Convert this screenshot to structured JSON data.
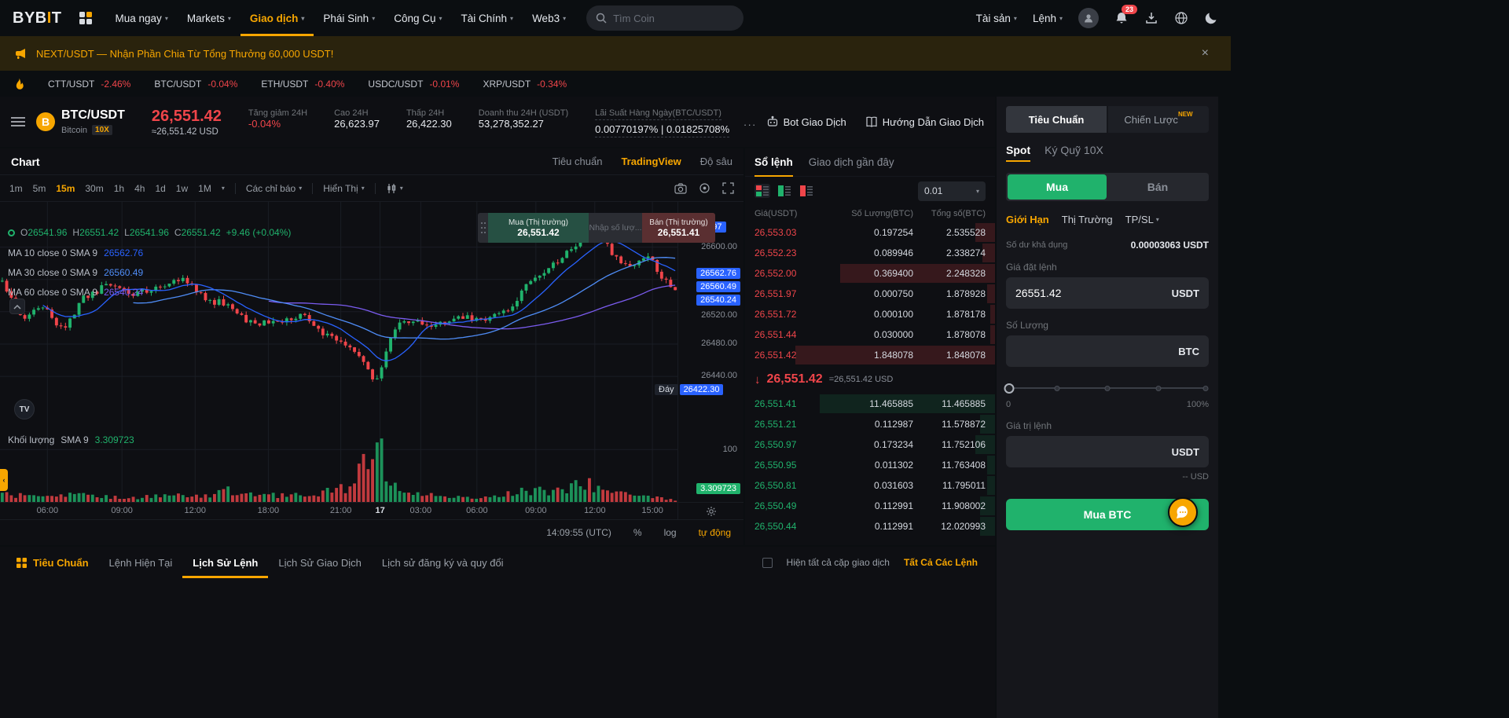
{
  "nav": {
    "logo_pre": "BYB",
    "logo_accent": "I",
    "logo_post": "T",
    "menu": [
      {
        "label": "Mua ngay",
        "active": false
      },
      {
        "label": "Markets",
        "active": false
      },
      {
        "label": "Giao dịch",
        "active": true
      },
      {
        "label": "Phái Sinh",
        "active": false
      },
      {
        "label": "Công Cụ",
        "active": false
      },
      {
        "label": "Tài Chính",
        "active": false
      },
      {
        "label": "Web3",
        "active": false
      }
    ],
    "search_placeholder": "Tìm Coin",
    "assets_label": "Tài sản",
    "orders_label": "Lệnh",
    "notification_count": "23"
  },
  "banner": {
    "text": "NEXT/USDT — Nhận Phần Chia Từ Tổng Thưởng 60,000 USDT!",
    "close": "×"
  },
  "ticker": [
    {
      "pair": "CTT/USDT",
      "change": "-2.46%"
    },
    {
      "pair": "BTC/USDT",
      "change": "-0.04%"
    },
    {
      "pair": "ETH/USDT",
      "change": "-0.40%"
    },
    {
      "pair": "USDC/USDT",
      "change": "-0.01%"
    },
    {
      "pair": "XRP/USDT",
      "change": "-0.34%"
    }
  ],
  "instrument": {
    "pair": "BTC/USDT",
    "name": "Bitcoin",
    "leverage": "10X",
    "last_price": "26,551.42",
    "usd_price": "≈26,551.42 USD",
    "stats": [
      {
        "label": "Tăng giảm 24H",
        "value": "-0.04%",
        "negative": true
      },
      {
        "label": "Cao 24H",
        "value": "26,623.97"
      },
      {
        "label": "Thấp 24H",
        "value": "26,422.30"
      },
      {
        "label": "Doanh thu 24H (USDT)",
        "value": "53,278,352.27"
      },
      {
        "label": "Lãi Suất Hàng Ngày(BTC/USDT)",
        "value": "0.00770197% | 0.01825708%",
        "dashed": true
      }
    ],
    "more": "...",
    "bot_label": "Bot Giao Dịch",
    "guide_label": "Hướng Dẫn Giao Dịch"
  },
  "chart": {
    "title": "Chart",
    "view_tabs": [
      {
        "label": "Tiêu chuẩn",
        "active": false
      },
      {
        "label": "TradingView",
        "active": true
      },
      {
        "label": "Độ sâu",
        "active": false
      }
    ],
    "timeframes": [
      {
        "label": "1m"
      },
      {
        "label": "5m"
      },
      {
        "label": "15m",
        "active": true
      },
      {
        "label": "30m"
      },
      {
        "label": "1h"
      },
      {
        "label": "4h"
      },
      {
        "label": "1d"
      },
      {
        "label": "1w"
      },
      {
        "label": "1M"
      }
    ],
    "indicators_label": "Các chỉ báo",
    "display_label": "Hiển Thị",
    "ohlc": {
      "o_label": "O",
      "open": "26541.96",
      "h_label": "H",
      "high": "26551.42",
      "l_label": "L",
      "low": "26541.96",
      "c_label": "C",
      "close": "26551.42",
      "change": "+9.46 (+0.04%)"
    },
    "ma_lines": [
      {
        "label": "MA 10 close 0 SMA 9",
        "value": "26562.76"
      },
      {
        "label": "MA 30 close 0 SMA 9",
        "value": "26560.49"
      },
      {
        "label": "MA 60 close 0 SMA 9",
        "value": "26540.24"
      }
    ],
    "trade_widget": {
      "buy_label": "Mua (Thị trường)",
      "buy_price": "26,551.42",
      "qty_placeholder": "Nhập số lượ...",
      "sell_label": "Bán (Thị trường)",
      "sell_price": "26,551.41"
    },
    "axis": {
      "high_tag": "Đỉnh",
      "high_value": "26623.97",
      "grid1": "26600.00",
      "grid2": "26520.00",
      "grid3": "26480.00",
      "grid4": "26440.00",
      "ma1": "26562.76",
      "ma2": "26560.49",
      "ma3": "26540.24",
      "low_tag": "Đáy",
      "low_value": "26422.30",
      "vol_grid": "100",
      "vol_value": "3.309723"
    },
    "volume_label": "Khối lượng",
    "volume_ma": "SMA 9",
    "volume_value": "3.309723",
    "time_ticks": [
      {
        "label": "06:00",
        "x": 7.0
      },
      {
        "label": "09:00",
        "x": 18.0
      },
      {
        "label": "12:00",
        "x": 28.8
      },
      {
        "label": "18:00",
        "x": 39.6
      },
      {
        "label": "21:00",
        "x": 50.3
      },
      {
        "label": "17",
        "x": 56.1,
        "major": true
      },
      {
        "label": "03:00",
        "x": 62.1
      },
      {
        "label": "06:00",
        "x": 70.4
      },
      {
        "label": "09:00",
        "x": 79.1
      },
      {
        "label": "12:00",
        "x": 87.8
      },
      {
        "label": "15:00",
        "x": 96.3
      }
    ],
    "footer": {
      "clock": "14:09:55 (UTC)",
      "percent": "%",
      "log": "log",
      "auto": "tự động"
    },
    "render": {
      "price_range": [
        26372,
        26656
      ],
      "h_grid": [
        26600,
        26560,
        26520,
        26480,
        26440
      ],
      "candle_count": 150,
      "profile": [
        [
          0,
          26558
        ],
        [
          0.03,
          26510
        ],
        [
          0.06,
          26530
        ],
        [
          0.09,
          26495
        ],
        [
          0.12,
          26535
        ],
        [
          0.16,
          26556
        ],
        [
          0.2,
          26542
        ],
        [
          0.24,
          26550
        ],
        [
          0.27,
          26562
        ],
        [
          0.3,
          26535
        ],
        [
          0.34,
          26528
        ],
        [
          0.37,
          26505
        ],
        [
          0.41,
          26508
        ],
        [
          0.45,
          26518
        ],
        [
          0.48,
          26492
        ],
        [
          0.52,
          26478
        ],
        [
          0.555,
          26432
        ],
        [
          0.58,
          26498
        ],
        [
          0.61,
          26512
        ],
        [
          0.64,
          26502
        ],
        [
          0.68,
          26515
        ],
        [
          0.72,
          26508
        ],
        [
          0.75,
          26522
        ],
        [
          0.78,
          26552
        ],
        [
          0.81,
          26570
        ],
        [
          0.84,
          26592
        ],
        [
          0.865,
          26612
        ],
        [
          0.885,
          26618
        ],
        [
          0.91,
          26588
        ],
        [
          0.935,
          26572
        ],
        [
          0.96,
          26590
        ],
        [
          0.98,
          26560
        ],
        [
          1,
          26551
        ]
      ],
      "vol_profile": [
        [
          0,
          14
        ],
        [
          0.06,
          9
        ],
        [
          0.12,
          16
        ],
        [
          0.18,
          8
        ],
        [
          0.24,
          12
        ],
        [
          0.3,
          10
        ],
        [
          0.34,
          22
        ],
        [
          0.4,
          12
        ],
        [
          0.46,
          16
        ],
        [
          0.52,
          28
        ],
        [
          0.555,
          120
        ],
        [
          0.575,
          55
        ],
        [
          0.6,
          22
        ],
        [
          0.65,
          12
        ],
        [
          0.7,
          10
        ],
        [
          0.75,
          16
        ],
        [
          0.79,
          24
        ],
        [
          0.83,
          20
        ],
        [
          0.86,
          40
        ],
        [
          0.88,
          30
        ],
        [
          0.91,
          18
        ],
        [
          0.94,
          12
        ],
        [
          0.97,
          8
        ],
        [
          1,
          4
        ]
      ],
      "vol_max": 135,
      "colors": {
        "up": "#20b26c",
        "down": "#ef454a",
        "ma10": "#2962ff",
        "ma30": "#4f8df7",
        "ma60": "#7b5cf0",
        "grid": "#1a1d24"
      }
    }
  },
  "orderbook": {
    "tabs": [
      {
        "label": "Sổ lệnh",
        "active": true
      },
      {
        "label": "Giao dịch gần đây",
        "active": false
      }
    ],
    "precision": "0.01",
    "columns": [
      "Giá(USDT)",
      "Số Lượng(BTC)",
      "Tổng số(BTC)"
    ],
    "asks": [
      {
        "price": "26,553.03",
        "amount": "0.197254",
        "total": "2.535528",
        "depth": 8
      },
      {
        "price": "26,552.23",
        "amount": "0.089946",
        "total": "2.338274",
        "depth": 5
      },
      {
        "price": "26,552.00",
        "amount": "0.369400",
        "total": "2.248328",
        "depth": 62
      },
      {
        "price": "26,551.97",
        "amount": "0.000750",
        "total": "1.878928",
        "depth": 3
      },
      {
        "price": "26,551.72",
        "amount": "0.000100",
        "total": "1.878178",
        "depth": 2
      },
      {
        "price": "26,551.44",
        "amount": "0.030000",
        "total": "1.878078",
        "depth": 2
      },
      {
        "price": "26,551.42",
        "amount": "1.848078",
        "total": "1.848078",
        "depth": 80
      }
    ],
    "last": {
      "arrow": "↓",
      "price": "26,551.42",
      "usd": "=26,551.42 USD"
    },
    "bids": [
      {
        "price": "26,551.41",
        "amount": "11.465885",
        "total": "11.465885",
        "depth": 70
      },
      {
        "price": "26,551.21",
        "amount": "0.112987",
        "total": "11.578872",
        "depth": 6
      },
      {
        "price": "26,550.97",
        "amount": "0.173234",
        "total": "11.752106",
        "depth": 8
      },
      {
        "price": "26,550.95",
        "amount": "0.011302",
        "total": "11.763408",
        "depth": 3
      },
      {
        "price": "26,550.81",
        "amount": "0.031603",
        "total": "11.795011",
        "depth": 3
      },
      {
        "price": "26,550.49",
        "amount": "0.112991",
        "total": "11.908002",
        "depth": 6
      },
      {
        "price": "26,550.44",
        "amount": "0.112991",
        "total": "12.020993",
        "depth": 6
      }
    ]
  },
  "panel": {
    "mode_tabs": [
      {
        "label": "Tiêu Chuẩn",
        "active": true
      },
      {
        "label": "Chiến Lược",
        "badge": "NEW",
        "active": false
      }
    ],
    "market_tabs": [
      {
        "label": "Spot",
        "active": true
      },
      {
        "label": "Ký Quỹ 10X",
        "active": false
      }
    ],
    "buy_label": "Mua",
    "sell_label": "Bán",
    "order_types": [
      {
        "label": "Giới Hạn",
        "active": true
      },
      {
        "label": "Thị Trường"
      },
      {
        "label": "TP/SL",
        "caret": true
      }
    ],
    "balance_label": "Số dư khả dụng",
    "balance_value": "0.00003063 USDT",
    "price_label": "Giá đặt lệnh",
    "price_value": "26551.42",
    "price_unit": "USDT",
    "qty_label": "Số Lượng",
    "qty_unit": "BTC",
    "slider_min": "0",
    "slider_max": "100%",
    "value_label": "Giá trị lệnh",
    "value_unit": "USDT",
    "value_usd": "-- USD",
    "submit_label": "Mua BTC"
  },
  "bottom": {
    "tabs": [
      {
        "label": "Tiêu Chuẩn",
        "accent": true
      },
      {
        "label": "Lệnh Hiện Tại"
      },
      {
        "label": "Lịch Sử Lệnh",
        "active": true
      },
      {
        "label": "Lịch Sử Giao Dịch"
      },
      {
        "label": "Lịch sử đăng ký và quy đổi"
      }
    ],
    "show_all_label": "Hiện tất cả cặp giao dịch",
    "all_orders_label": "Tất Cả Các Lệnh"
  }
}
